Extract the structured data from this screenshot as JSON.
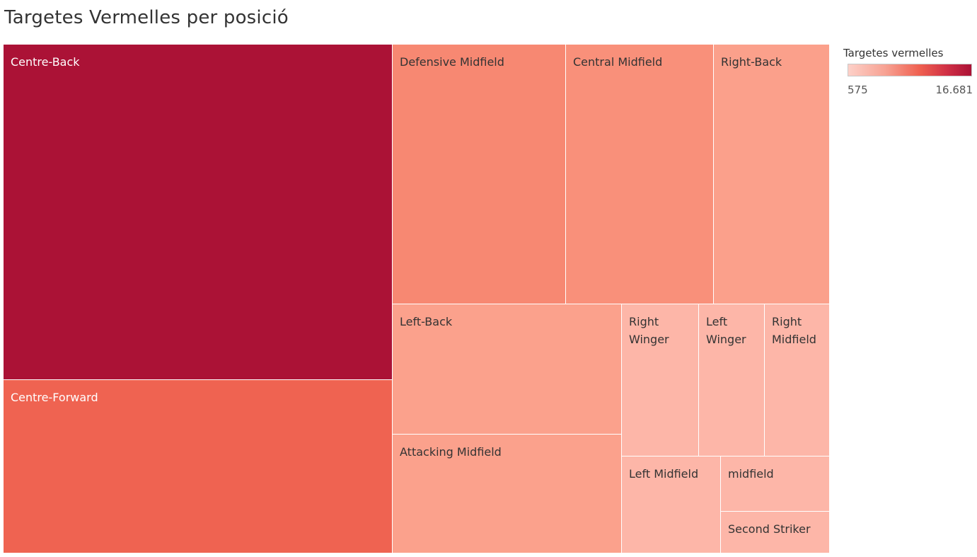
{
  "chart_data": {
    "type": "treemap",
    "title": "Targetes Vermelles per posició",
    "color_legend": {
      "title": "Targetes vermelles",
      "min_label": "575",
      "max_label": "16.681",
      "min": 575,
      "max": 16681,
      "color_min": "#fdd0c8",
      "color_max": "#ab1236"
    },
    "items": [
      {
        "label": "Centre-Back",
        "value": 16681,
        "color": "#ab1236"
      },
      {
        "label": "Centre-Forward",
        "value": 8500,
        "color": "#ef6351"
      },
      {
        "label": "Defensive Midfield",
        "value": 5400,
        "color": "#f78872"
      },
      {
        "label": "Central Midfield",
        "value": 4600,
        "color": "#f9907a"
      },
      {
        "label": "Right-Back",
        "value": 3600,
        "color": "#fba08b"
      },
      {
        "label": "Left-Back",
        "value": 3200,
        "color": "#fba18c"
      },
      {
        "label": "Attacking Midfield",
        "value": 3000,
        "color": "#fba18c"
      },
      {
        "label": "Right Winger",
        "value": 1250,
        "color": "#fdb6a8"
      },
      {
        "label": "Left Winger",
        "value": 1050,
        "color": "#fdb6a8"
      },
      {
        "label": "Right Midfield",
        "value": 1000,
        "color": "#fdb6a8"
      },
      {
        "label": "Left Midfield",
        "value": 1050,
        "color": "#fdb6a8"
      },
      {
        "label": "midfield",
        "value": 650,
        "color": "#fdb6a8"
      },
      {
        "label": "Second Striker",
        "value": 575,
        "color": "#fdb6a8"
      }
    ]
  }
}
